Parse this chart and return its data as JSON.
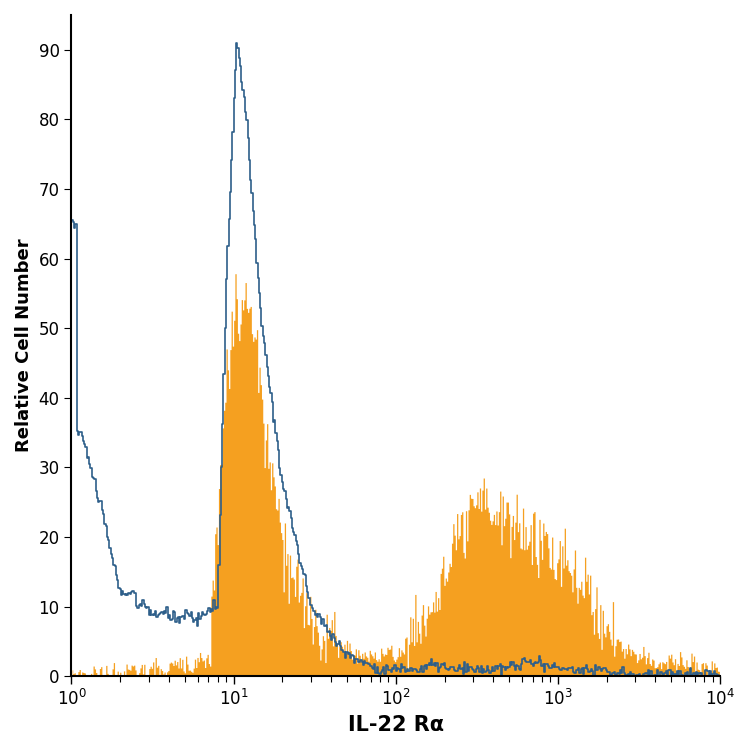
{
  "title": "",
  "xlabel": "IL-22 Rα",
  "ylabel": "Relative Cell Number",
  "xlim": [
    1,
    10000
  ],
  "ylim": [
    0,
    95
  ],
  "yticks": [
    0,
    10,
    20,
    30,
    40,
    50,
    60,
    70,
    80,
    90
  ],
  "blue_color": "#2e5f8a",
  "orange_color": "#f5a020",
  "background_color": "#ffffff",
  "xlabel_fontsize": 15,
  "ylabel_fontsize": 13,
  "tick_fontsize": 12
}
